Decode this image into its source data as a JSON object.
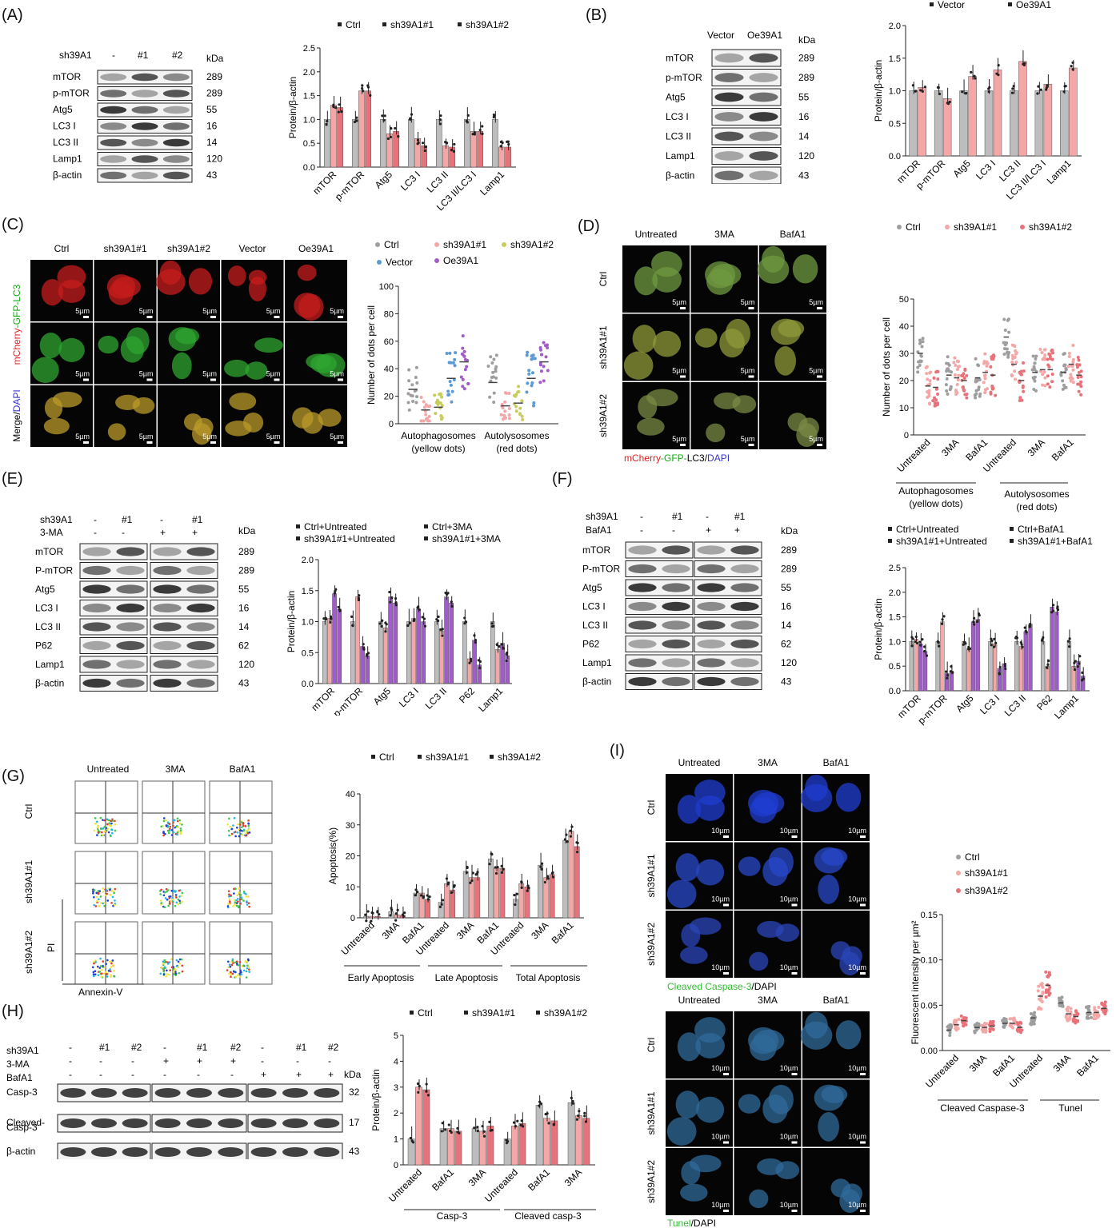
{
  "labels": {
    "A": "(A)",
    "B": "(B)",
    "C": "(C)",
    "D": "(D)",
    "E": "(E)",
    "F": "(F)",
    "G": "(G)",
    "H": "(H)",
    "I": "(I)"
  },
  "common": {
    "kda": "kDa",
    "ylabel": "Protein/β-actin",
    "dots": "Number of dots per cell",
    "apoptosis": "Apoptosis(%)",
    "fluor": "Fluorescent intensity per µm²",
    "scale5": "5µm",
    "scale10": "10µm"
  },
  "panelA": {
    "lanes": [
      "sh39A1",
      "-",
      "#1",
      "#2"
    ],
    "bands": [
      [
        "mTOR",
        "289"
      ],
      [
        "p-mTOR",
        "289"
      ],
      [
        "Atg5",
        "55"
      ],
      [
        "LC3 I",
        "16"
      ],
      [
        "LC3 II",
        "14"
      ],
      [
        "Lamp1",
        "120"
      ],
      [
        "β-actin",
        "43"
      ]
    ],
    "legend": [
      "Ctrl",
      "sh39A1#1",
      "sh39A1#2"
    ],
    "categories": [
      "mTOR",
      "p-mTOR",
      "Atg5",
      "LC3 I",
      "LC3 II",
      "LC3 II/LC3 I",
      "Lamp1"
    ],
    "yticks": [
      "0.0",
      "0.5",
      "1.0",
      "1.5",
      "2.0",
      "2.5"
    ]
  },
  "panelB": {
    "lanes": [
      "Vector",
      "Oe39A1"
    ],
    "bands": [
      [
        "mTOR",
        "289"
      ],
      [
        "p-mTOR",
        "289"
      ],
      [
        "Atg5",
        "55"
      ],
      [
        "LC3 I",
        "16"
      ],
      [
        "LC3 II",
        "14"
      ],
      [
        "Lamp1",
        "120"
      ],
      [
        "β-actin",
        "43"
      ]
    ],
    "legend": [
      "Vector",
      "Oe39A1"
    ],
    "categories": [
      "mTOR",
      "p-mTOR",
      "Atg5",
      "LC3 I",
      "LC3 II",
      "LC3 II/LC3 I",
      "Lamp1"
    ],
    "yticks": [
      "0.0",
      "0.5",
      "1.0",
      "1.5",
      "2.0"
    ]
  },
  "panelC": {
    "cols": [
      "Ctrl",
      "sh39A1#1",
      "sh39A1#2",
      "Vector",
      "Oe39A1"
    ],
    "side": [
      "mCherry",
      "-GFP-LC3",
      "Merge/",
      "DAPI"
    ],
    "legend": [
      "Ctrl",
      "sh39A1#1",
      "sh39A1#2",
      "Vector",
      "Oe39A1"
    ],
    "groups": [
      "Autophagosomes",
      "(yellow dots)",
      "Autolysosomes",
      "(red dots)"
    ],
    "yticks": [
      "0",
      "20",
      "40",
      "60",
      "80",
      "100"
    ]
  },
  "panelD": {
    "cols": [
      "Untreated",
      "3MA",
      "BafA1"
    ],
    "rows": [
      "Ctrl",
      "sh39A1#1",
      "sh39A1#2"
    ],
    "caption": [
      "mCherry",
      "-GFP-",
      "LC3/",
      "DAPI"
    ],
    "legend": [
      "Ctrl",
      "sh39A1#1",
      "sh39A1#2"
    ],
    "xcats": [
      "Untreated",
      "3MA",
      "BafA1",
      "Untreated",
      "3MA",
      "BafA1"
    ],
    "groups": [
      "Autophagosomes",
      "(yellow dots)",
      "Autolysosomes",
      "(red dots)"
    ],
    "yticks": [
      "0",
      "10",
      "20",
      "30",
      "40",
      "50"
    ]
  },
  "panelE": {
    "lanes1": [
      "sh39A1",
      "-",
      "#1",
      "-",
      "#1"
    ],
    "lanes2": [
      "3-MA",
      "-",
      "-",
      "+",
      "+"
    ],
    "bands": [
      [
        "mTOR",
        "289"
      ],
      [
        "P-mTOR",
        "289"
      ],
      [
        "Atg5",
        "55"
      ],
      [
        "LC3 I",
        "16"
      ],
      [
        "LC3 II",
        "14"
      ],
      [
        "P62",
        "62"
      ],
      [
        "Lamp1",
        "120"
      ],
      [
        "β-actin",
        "43"
      ]
    ],
    "legend": [
      "Ctrl+Untreated",
      "Ctrl+3MA",
      "sh39A1#1+Untreated",
      "sh39A1#1+3MA"
    ],
    "categories": [
      "mTOR",
      "p-mTOR",
      "Atg5",
      "LC3 I",
      "LC3 II",
      "P62",
      "Lamp1"
    ],
    "yticks": [
      "0.0",
      "0.5",
      "1.0",
      "1.5",
      "2.0"
    ]
  },
  "panelF": {
    "lanes1": [
      "sh39A1",
      "-",
      "#1",
      "-",
      "#1"
    ],
    "lanes2": [
      "BafA1",
      "-",
      "-",
      "+",
      "+"
    ],
    "bands": [
      [
        "mTOR",
        "289"
      ],
      [
        "P-mTOR",
        "289"
      ],
      [
        "Atg5",
        "55"
      ],
      [
        "LC3 I",
        "16"
      ],
      [
        "LC3 II",
        "14"
      ],
      [
        "P62",
        "62"
      ],
      [
        "Lamp1",
        "120"
      ],
      [
        "β-actin",
        "43"
      ]
    ],
    "legend": [
      "Ctrl+Untreated",
      "Ctrl+BafA1",
      "sh39A1#1+Untreated",
      "sh39A1#1+BafA1"
    ],
    "categories": [
      "mTOR",
      "p-mTOR",
      "Atg5",
      "LC3 I",
      "LC3 II",
      "P62",
      "Lamp1"
    ],
    "yticks": [
      "0.0",
      "0.5",
      "1.0",
      "1.5",
      "2.0",
      "2.5"
    ]
  },
  "panelG": {
    "cols": [
      "Untreated",
      "3MA",
      "BafA1"
    ],
    "rows": [
      "Ctrl",
      "sh39A1#1",
      "sh39A1#2"
    ],
    "axes": [
      "PI",
      "Annexin-V"
    ],
    "legend": [
      "Ctrl",
      "sh39A1#1",
      "sh39A1#2"
    ],
    "xcats": [
      "Untreated",
      "3MA",
      "BafA1",
      "Untreated",
      "3MA",
      "BafA1",
      "Untreated",
      "3MA",
      "BafA1"
    ],
    "groups": [
      "Early  Apoptosis",
      "Late Apoptosis",
      "Total  Apoptosis"
    ],
    "yticks": [
      "0",
      "10",
      "20",
      "30",
      "40"
    ]
  },
  "panelH": {
    "rowlabels": [
      "sh39A1",
      "3-MA",
      "BafA1"
    ],
    "lanes": [
      [
        "-",
        "#1",
        "#2",
        "-",
        "#1",
        "#2",
        "-",
        "#1",
        "#2"
      ],
      [
        "-",
        "-",
        "-",
        "+",
        "+",
        "+",
        "-",
        "-",
        "-"
      ],
      [
        "-",
        "-",
        "-",
        "-",
        "-",
        "-",
        "+",
        "+",
        "+"
      ]
    ],
    "bands": [
      [
        "Casp-3",
        "32"
      ],
      [
        "Cleaved-",
        "17"
      ],
      [
        "Casp-3",
        ""
      ],
      [
        "β-actin",
        "43"
      ]
    ],
    "legend": [
      "Ctrl",
      "sh39A1#1",
      "sh39A1#2"
    ],
    "xcats": [
      "Untreated",
      "BafA1",
      "3MA",
      "Untreated",
      "BafA1",
      "3MA"
    ],
    "groups": [
      "Casp-3",
      "Cleaved casp-3"
    ],
    "yticks": [
      "0",
      "1",
      "2",
      "3",
      "4",
      "5"
    ]
  },
  "panelI": {
    "cols": [
      "Untreated",
      "3MA",
      "BafA1"
    ],
    "rows": [
      "Ctrl",
      "sh39A1#1",
      "sh39A1#2"
    ],
    "cap1": [
      "Cleaved Caspase-3",
      "/DAPI"
    ],
    "cap2": [
      "Tunel",
      "/DAPI"
    ],
    "legend": [
      "Ctrl",
      "sh39A1#1",
      "sh39A1#2"
    ],
    "xcats": [
      "Untreated",
      "3MA",
      "BafA1",
      "Untreated",
      "3MA",
      "BafA1"
    ],
    "groups": [
      "Cleaved Caspase-3",
      "Tunel"
    ],
    "yticks": [
      "0.00",
      "0.05",
      "0.10",
      "0.15"
    ]
  },
  "colors": {
    "grey": "#bdbdbd",
    "pink": "#f4a7a7",
    "red": "#e8727a",
    "blue": "#5b9bd5",
    "purple": "#a05cc8",
    "olive": "#c8cc5a"
  }
}
